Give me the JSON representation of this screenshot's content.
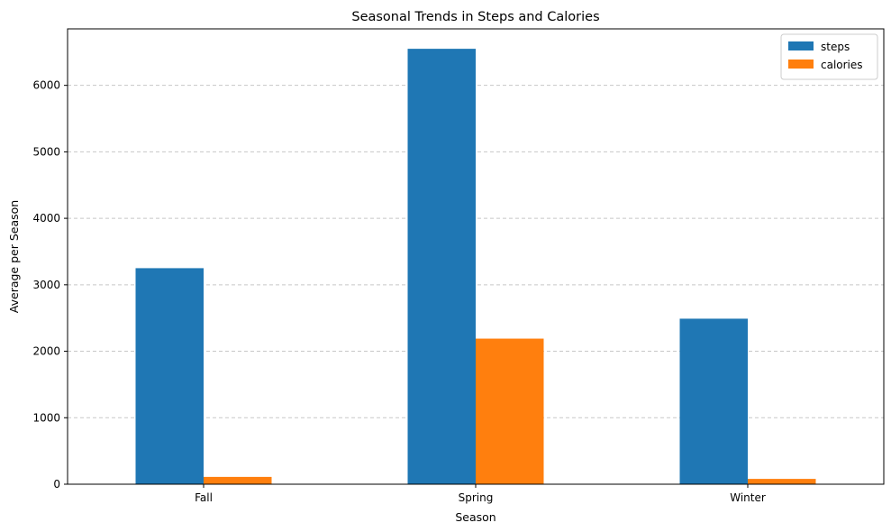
{
  "chart_data": {
    "type": "bar",
    "title": "Seasonal Trends in Steps and Calories",
    "xlabel": "Season",
    "ylabel": "Average per Season",
    "categories": [
      "Fall",
      "Spring",
      "Winter"
    ],
    "series": [
      {
        "name": "steps",
        "color": "#1f77b4",
        "values": [
          3250,
          6550,
          2490
        ]
      },
      {
        "name": "calories",
        "color": "#ff7f0e",
        "values": [
          110,
          2190,
          80
        ]
      }
    ],
    "ylim": [
      0,
      6850
    ],
    "yticks": [
      0,
      1000,
      2000,
      3000,
      4000,
      5000,
      6000
    ],
    "grid": {
      "axis": "y",
      "style": "dashed"
    },
    "legend": {
      "position": "top-right"
    }
  }
}
